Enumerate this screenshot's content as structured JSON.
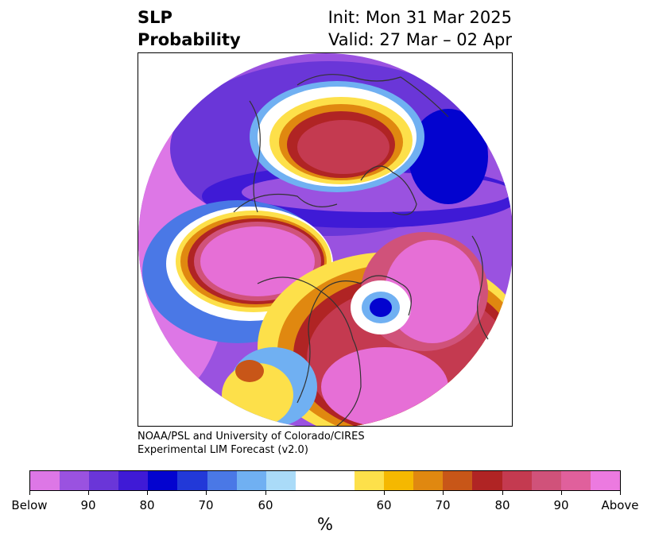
{
  "title": {
    "left_line1": "SLP",
    "left_line2": "Probability",
    "right_line1": "Init: Mon 31 Mar 2025",
    "right_line2": "Valid: 27 Mar – 02 Apr"
  },
  "credit": {
    "line1": "NOAA/PSL and University of Colorado/CIRES",
    "line2": "Experimental LIM Forecast (v2.0)"
  },
  "colorbar": {
    "unit": "%",
    "colors": [
      "#dd77e6",
      "#9a52e0",
      "#6a36d8",
      "#3f1ad6",
      "#0303cf",
      "#2239d8",
      "#4a78e6",
      "#70b0f2",
      "#aadbf8",
      "#ffffff",
      "#ffffff",
      "#fde04a",
      "#f5b800",
      "#e08810",
      "#c85618",
      "#b02424",
      "#c43a50",
      "#d0527a",
      "#e0609c",
      "#ec7ae0"
    ],
    "ticks": [
      "Below",
      "90",
      "80",
      "70",
      "60",
      "60",
      "70",
      "80",
      "90",
      "Above"
    ]
  },
  "map_colors": {
    "below_strong": "#dd77e6",
    "below": "#9a52e0",
    "below_mid": "#3f1ad6",
    "below_weak": "#4a78e6",
    "neutral": "#ffffff",
    "above_weak": "#fde04a",
    "above_mid": "#e08810",
    "above": "#c43a50",
    "above_strong": "#e66fd6"
  }
}
